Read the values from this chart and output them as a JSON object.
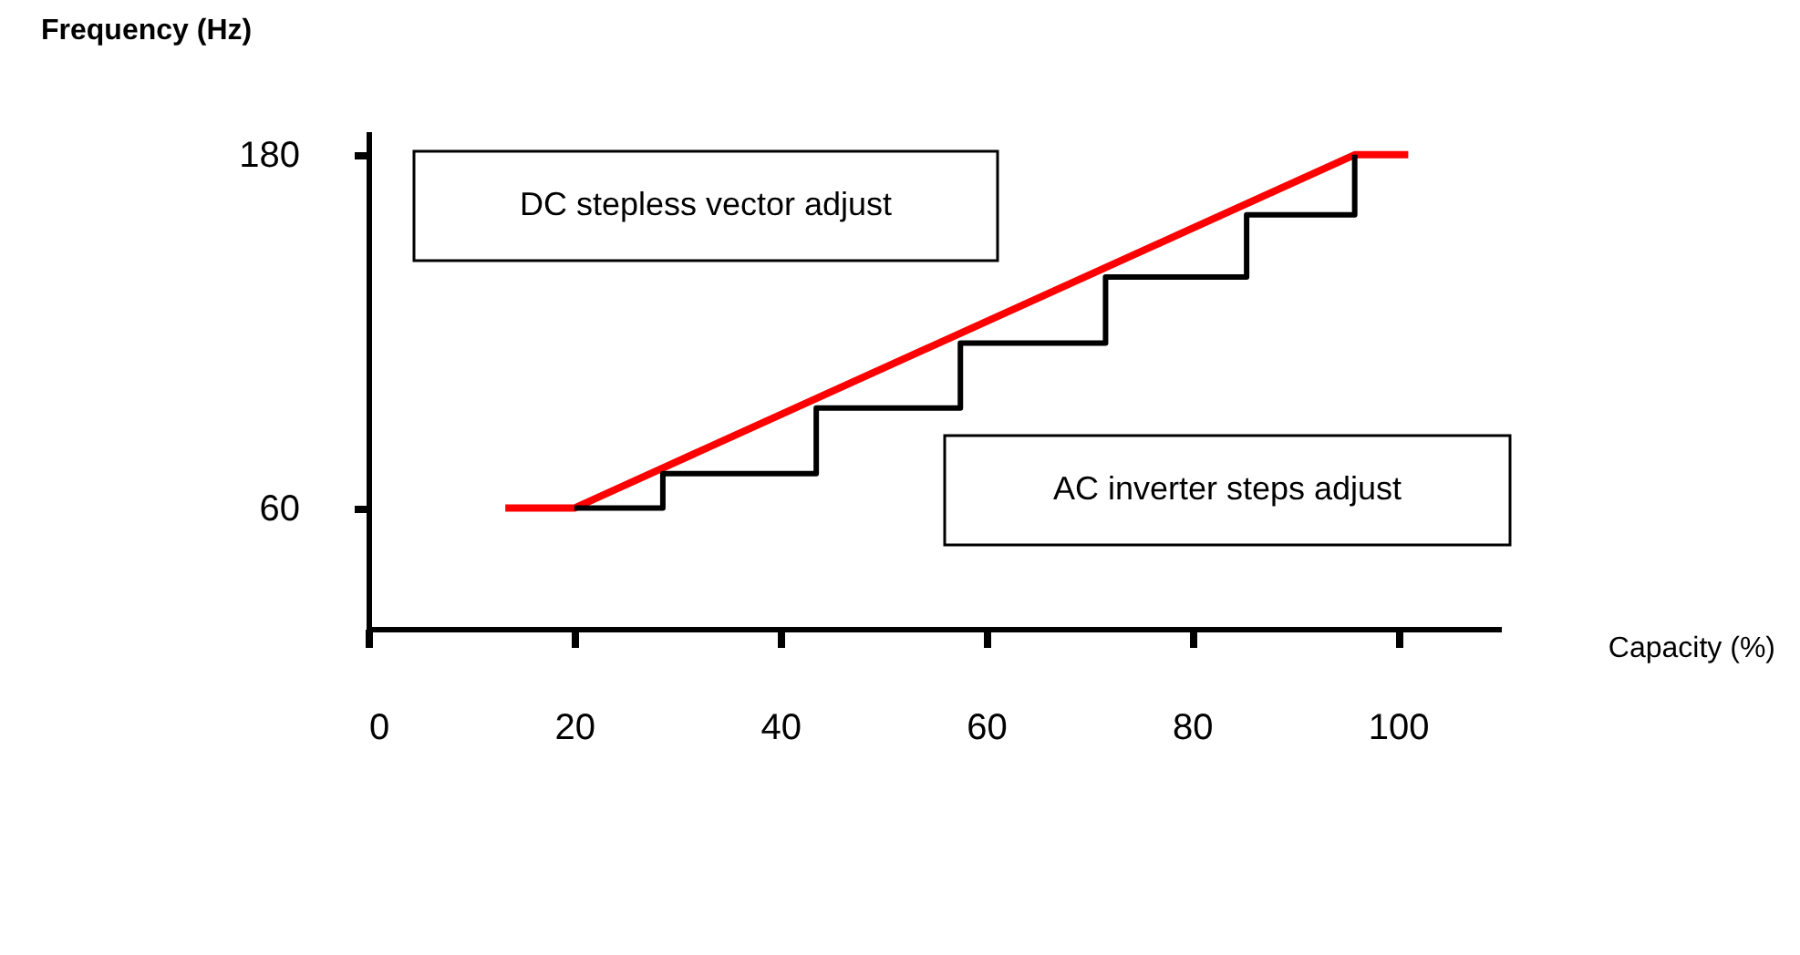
{
  "chart_data": {
    "type": "line",
    "xlabel": "Capacity (%)",
    "ylabel": "Frequency (Hz)",
    "xlim": [
      0,
      110
    ],
    "ylim": [
      19,
      188
    ],
    "xticks": [
      0,
      20,
      40,
      60,
      80,
      100
    ],
    "yticks": [
      60,
      180
    ],
    "grid": false,
    "series": [
      {
        "color": "#ff0000",
        "x": [
          13.3,
          20,
          95.8,
          101
        ],
        "values": [
          60,
          60,
          180,
          180
        ]
      },
      {
        "type": "step",
        "color": "#000000",
        "x": [
          20,
          28.6,
          43.5,
          57.5,
          71.6,
          85.3,
          95.8
        ],
        "values": [
          60,
          71.7,
          94,
          116,
          138.5,
          159.6,
          180
        ]
      }
    ],
    "annotations": [
      "DC stepless vector adjust",
      "AC inverter steps adjust"
    ]
  }
}
